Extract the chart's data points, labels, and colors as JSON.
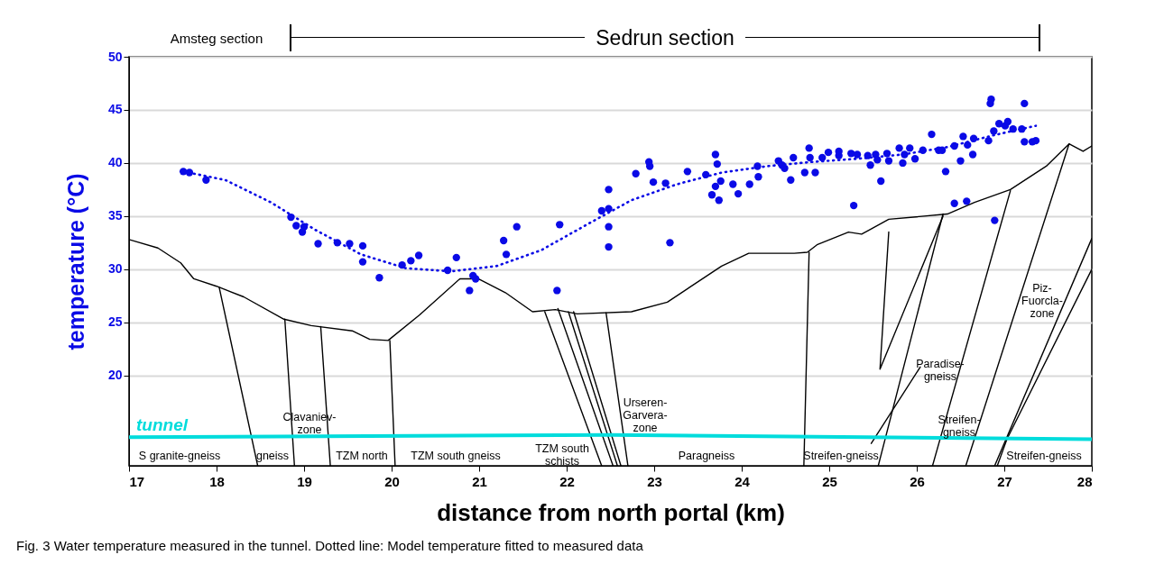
{
  "chart_data": {
    "type": "scatter",
    "xlabel": "distance from north portal (km)",
    "ylabel": "temperature (°C)",
    "xlim": [
      17,
      28
    ],
    "ylim": [
      11.5,
      50
    ],
    "xticks": [
      17,
      18,
      19,
      20,
      21,
      22,
      23,
      24,
      25,
      26,
      27,
      28
    ],
    "yticks": [
      20,
      25,
      30,
      35,
      40,
      45,
      50
    ],
    "grid": "y",
    "series": [
      {
        "type": "line",
        "color": "#000000",
        "x": [
          17,
          17.33,
          17.59,
          17.74,
          18.0,
          18.31,
          18.77,
          19.08,
          19.55,
          19.75,
          19.96,
          20.32,
          20.78,
          20.99,
          21.3,
          21.61,
          21.87,
          22.12,
          22.74,
          23.15,
          23.77,
          24.08,
          24.6,
          24.75,
          24.86,
          25.22,
          25.37,
          25.68,
          26.35,
          26.66,
          27.07,
          27.48,
          27.74,
          27.9,
          28
        ],
        "values": [
          32.8,
          32.0,
          30.6,
          29.1,
          28.4,
          27.4,
          25.3,
          24.7,
          24.2,
          23.4,
          23.3,
          25.7,
          29.1,
          29.1,
          27.8,
          26.0,
          26.2,
          25.8,
          26.0,
          26.9,
          30.3,
          31.5,
          31.5,
          31.6,
          32.3,
          33.5,
          33.3,
          34.7,
          35.2,
          36.3,
          37.5,
          39.7,
          41.8,
          41.1,
          41.6
        ]
      },
      {
        "type": "line",
        "color": "#000000",
        "x": [
          18.03,
          18.47
        ],
        "values": [
          28.3,
          11.5
        ]
      },
      {
        "type": "line",
        "color": "#000000",
        "x": [
          18.78,
          18.89
        ],
        "values": [
          25.3,
          11.5
        ]
      },
      {
        "type": "line",
        "color": "#000000",
        "x": [
          19.19,
          19.3
        ],
        "values": [
          24.6,
          11.5
        ]
      },
      {
        "type": "line",
        "color": "#000000",
        "x": [
          19.98,
          20.04
        ],
        "values": [
          23.3,
          11.5
        ]
      },
      {
        "type": "line",
        "color": "#000000",
        "x": [
          21.75,
          22.4
        ],
        "values": [
          26.0,
          11.5
        ]
      },
      {
        "type": "line",
        "color": "#000000",
        "x": [
          21.9,
          22.53
        ],
        "values": [
          26.3,
          11.5
        ]
      },
      {
        "type": "line",
        "color": "#000000",
        "x": [
          22.02,
          22.58
        ],
        "values": [
          26.0,
          11.5
        ]
      },
      {
        "type": "line",
        "color": "#000000",
        "x": [
          22.08,
          22.62
        ],
        "values": [
          26.0,
          11.5
        ]
      },
      {
        "type": "line",
        "color": "#000000",
        "x": [
          22.45,
          22.7
        ],
        "values": [
          25.9,
          11.5
        ]
      },
      {
        "type": "line",
        "color": "#000000",
        "x": [
          24.77,
          24.71
        ],
        "values": [
          31.6,
          11.5
        ]
      },
      {
        "type": "line",
        "color": "#000000",
        "x": [
          25.68,
          25.58,
          26.3
        ],
        "values": [
          33.5,
          20.6,
          35.0
        ]
      },
      {
        "type": "line",
        "color": "#000000",
        "x": [
          26.3,
          25.56
        ],
        "values": [
          35.2,
          11.5
        ]
      },
      {
        "type": "line",
        "color": "#000000",
        "x": [
          26.04,
          25.48
        ],
        "values": [
          20.8,
          13.6
        ]
      },
      {
        "type": "line",
        "color": "#000000",
        "x": [
          27.07,
          26.18
        ],
        "values": [
          37.4,
          11.5
        ]
      },
      {
        "type": "line",
        "color": "#000000",
        "x": [
          27.74,
          26.56
        ],
        "values": [
          41.8,
          11.5
        ]
      },
      {
        "type": "line",
        "color": "#000000",
        "x": [
          28,
          26.89
        ],
        "values": [
          32.9,
          11.5
        ]
      },
      {
        "type": "line",
        "color": "#000000",
        "x": [
          28,
          27.03,
          26.92
        ],
        "values": [
          30.0,
          14.0,
          11.5
        ]
      },
      {
        "type": "line",
        "name": "tunnel",
        "color": "#00dcdc",
        "x": [
          17,
          22.5,
          28
        ],
        "values": [
          14.2,
          14.4,
          14.0
        ]
      },
      {
        "type": "line",
        "line_style": "dotted",
        "color": "#0a0ae6",
        "x": [
          17.62,
          18.1,
          18.62,
          19.13,
          19.65,
          20.16,
          20.68,
          21.2,
          21.71,
          22.23,
          22.74,
          23.26,
          23.77,
          24.29,
          24.8,
          25.32,
          25.84,
          26.35,
          26.87,
          27.36
        ],
        "values": [
          39.2,
          38.4,
          36.3,
          33.7,
          31.4,
          30.1,
          29.8,
          30.3,
          31.8,
          34.2,
          36.5,
          38.0,
          39.1,
          39.7,
          40.1,
          40.4,
          40.8,
          41.5,
          42.6,
          43.5
        ]
      },
      {
        "marker": "circle",
        "color": "#0a0ae6",
        "x": [
          17.62,
          17.69,
          17.88,
          18.85,
          18.91,
          19.0,
          18.98,
          19.16,
          19.38,
          19.52,
          19.67,
          19.67,
          19.86,
          20.12,
          20.22,
          20.31,
          20.64,
          20.74,
          20.89,
          20.93,
          20.96,
          21.28,
          21.31,
          21.43,
          21.92,
          21.89,
          22.4,
          22.48,
          22.48,
          22.48,
          22.48,
          22.79,
          22.94,
          22.95,
          22.99,
          23.13,
          23.18,
          23.38,
          23.59,
          23.7,
          23.72,
          23.76,
          23.7,
          23.66,
          23.74,
          23.9,
          23.96,
          24.09,
          24.18,
          24.19,
          24.42,
          24.46,
          24.49,
          24.56,
          24.59,
          24.72,
          24.77,
          24.78,
          24.84,
          24.92,
          24.99,
          25.11,
          25.11,
          25.25,
          25.28,
          25.32,
          25.44,
          25.47,
          25.53,
          25.55,
          25.59,
          25.66,
          25.68,
          25.8,
          25.84,
          25.86,
          25.92,
          25.98,
          26.07,
          26.17,
          26.25,
          26.29,
          26.33,
          26.43,
          26.43,
          26.5,
          26.53,
          26.57,
          26.58,
          26.64,
          26.65,
          26.82,
          26.85,
          26.84,
          26.88,
          26.89,
          26.94,
          27.01,
          27.04,
          27.1,
          27.2,
          27.23,
          27.23,
          27.32,
          27.36
        ],
        "values": [
          39.2,
          39.1,
          38.4,
          34.9,
          34.1,
          34.0,
          33.5,
          32.4,
          32.5,
          32.4,
          32.2,
          30.7,
          29.2,
          30.4,
          30.8,
          31.3,
          29.9,
          31.1,
          28.0,
          29.4,
          29.1,
          32.7,
          31.4,
          34.0,
          34.2,
          28.0,
          35.5,
          37.5,
          35.7,
          34.0,
          32.1,
          39.0,
          40.1,
          39.7,
          38.2,
          38.1,
          32.5,
          39.2,
          38.9,
          40.8,
          39.9,
          38.3,
          37.8,
          37.0,
          36.5,
          38.0,
          37.1,
          38.0,
          39.7,
          38.7,
          40.2,
          39.8,
          39.5,
          38.4,
          40.5,
          39.1,
          41.4,
          40.5,
          39.1,
          40.5,
          41.0,
          41.1,
          40.7,
          40.9,
          36.0,
          40.8,
          40.7,
          39.8,
          40.8,
          40.3,
          38.3,
          40.9,
          40.2,
          41.4,
          40.0,
          40.8,
          41.4,
          40.4,
          41.2,
          42.7,
          41.2,
          41.2,
          39.2,
          36.2,
          41.6,
          40.2,
          42.5,
          36.4,
          41.7,
          40.8,
          42.3,
          42.1,
          46.0,
          45.6,
          43.0,
          34.6,
          43.7,
          43.5,
          43.9,
          43.2,
          43.2,
          45.6,
          42.0,
          42.0,
          42.1
        ]
      }
    ],
    "annotations": [
      "Amsteg section",
      "Sedrun section",
      "S granite-gneiss",
      "gneiss",
      "Clavaniev-\nzone",
      "TZM north",
      "TZM south gneiss",
      "TZM south\nschists",
      "Urseren-\nGarvera-\nzone",
      "Paragneiss",
      "Streifen-gneiss",
      "Paradise-\ngneiss",
      "Streifen-\ngneiss",
      "Piz-\nFuorcla-\nzone",
      "Streifen-gneiss",
      "Fig. 3  Water temperature measured in the tunnel. Dotted line: Model temperature fitted to measured data"
    ]
  }
}
